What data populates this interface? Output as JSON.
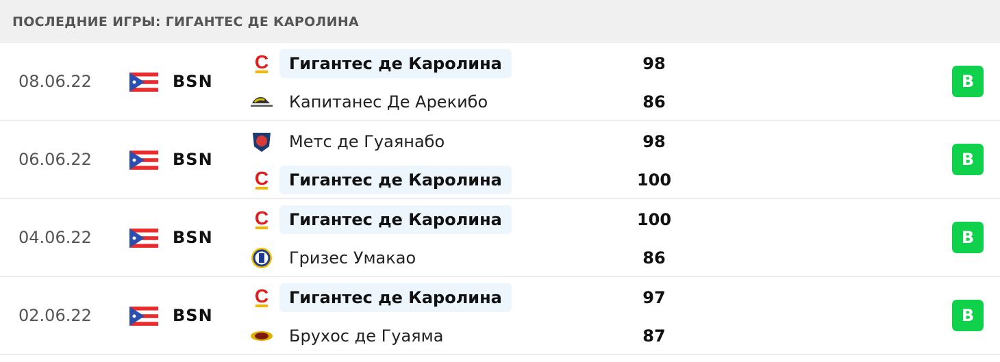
{
  "header": {
    "title": "ПОСЛЕДНИЕ ИГРЫ: ГИГАНТЕС ДЕ КАРОЛИНА"
  },
  "colors": {
    "win": "#0fd14b",
    "highlight": "#eef6fd"
  },
  "matches": [
    {
      "date": "08.06.22",
      "league": "BSN",
      "home": {
        "name": "Гигантес де Каролина",
        "logo": "gigantes-logo",
        "score": "98",
        "highlight": true
      },
      "away": {
        "name": "Капитанес Де Арекибо",
        "logo": "capitanes-logo",
        "score": "86",
        "highlight": false
      },
      "result": "В"
    },
    {
      "date": "06.06.22",
      "league": "BSN",
      "home": {
        "name": "Метс де Гуаянабо",
        "logo": "mets-logo",
        "score": "98",
        "highlight": false
      },
      "away": {
        "name": "Гигантес де Каролина",
        "logo": "gigantes-logo",
        "score": "100",
        "highlight": true
      },
      "result": "В"
    },
    {
      "date": "04.06.22",
      "league": "BSN",
      "home": {
        "name": "Гигантес де Каролина",
        "logo": "gigantes-logo",
        "score": "100",
        "highlight": true
      },
      "away": {
        "name": "Гризес Умакао",
        "logo": "grises-logo",
        "score": "86",
        "highlight": false
      },
      "result": "В"
    },
    {
      "date": "02.06.22",
      "league": "BSN",
      "home": {
        "name": "Гигантес де Каролина",
        "logo": "gigantes-logo",
        "score": "97",
        "highlight": true
      },
      "away": {
        "name": "Брухос де Гуаяма",
        "logo": "brujos-logo",
        "score": "87",
        "highlight": false
      },
      "result": "В"
    }
  ]
}
